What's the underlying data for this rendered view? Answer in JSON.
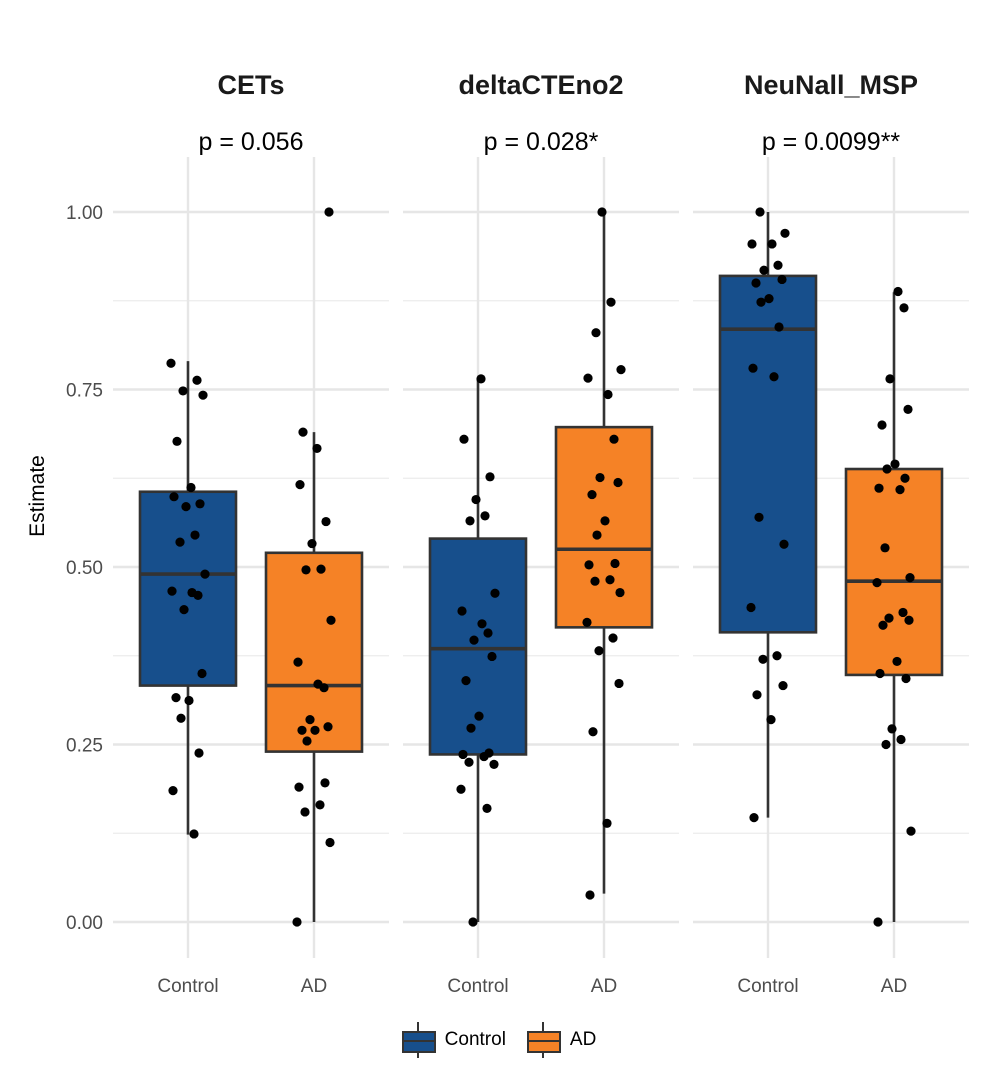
{
  "chart_data": {
    "type": "boxplot",
    "ylabel": "Estimate",
    "ylim": [
      -0.05,
      1.05
    ],
    "yticks": [
      0.0,
      0.25,
      0.5,
      0.75,
      1.0
    ],
    "ytick_labels": [
      "0.00",
      "0.25",
      "0.50",
      "0.75",
      "1.00"
    ],
    "grid": true,
    "categories": [
      "Control",
      "AD"
    ],
    "legend": {
      "position": "bottom",
      "entries": [
        {
          "label": "Control",
          "color": "#174F8C"
        },
        {
          "label": "AD",
          "color": "#F58226"
        }
      ]
    },
    "panels": [
      {
        "title": "CETs",
        "pvalue": "p = 0.056",
        "groups": [
          {
            "name": "Control",
            "box": {
              "min": 0.123,
              "q1": 0.333,
              "median": 0.49,
              "q3": 0.606,
              "max": 0.79
            },
            "points": [
              0.787,
              0.763,
              0.748,
              0.742,
              0.677,
              0.612,
              0.599,
              0.589,
              0.585,
              0.545,
              0.535,
              0.49,
              0.466,
              0.464,
              0.46,
              0.44,
              0.35,
              0.316,
              0.312,
              0.287,
              0.238,
              0.185,
              0.124
            ]
          },
          {
            "name": "AD",
            "box": {
              "min": 0.0,
              "q1": 0.24,
              "median": 0.333,
              "q3": 0.52,
              "max": 0.69
            },
            "points": [
              1.0,
              0.69,
              0.667,
              0.616,
              0.564,
              0.533,
              0.497,
              0.496,
              0.425,
              0.366,
              0.335,
              0.33,
              0.285,
              0.275,
              0.27,
              0.27,
              0.255,
              0.196,
              0.19,
              0.165,
              0.155,
              0.112,
              0.0
            ]
          }
        ]
      },
      {
        "title": "deltaCTEno2",
        "pvalue": "p = 0.028*",
        "groups": [
          {
            "name": "Control",
            "box": {
              "min": 0.0,
              "q1": 0.236,
              "median": 0.385,
              "q3": 0.54,
              "max": 0.765
            },
            "points": [
              0.765,
              0.68,
              0.627,
              0.595,
              0.572,
              0.565,
              0.463,
              0.438,
              0.42,
              0.407,
              0.397,
              0.374,
              0.34,
              0.29,
              0.273,
              0.238,
              0.236,
              0.233,
              0.225,
              0.222,
              0.187,
              0.16,
              0.0
            ]
          },
          {
            "name": "AD",
            "box": {
              "min": 0.04,
              "q1": 0.415,
              "median": 0.525,
              "q3": 0.697,
              "max": 1.0
            },
            "points": [
              1.0,
              0.873,
              0.83,
              0.778,
              0.766,
              0.743,
              0.68,
              0.626,
              0.619,
              0.602,
              0.565,
              0.545,
              0.505,
              0.503,
              0.482,
              0.48,
              0.464,
              0.422,
              0.4,
              0.382,
              0.336,
              0.268,
              0.139,
              0.038
            ]
          }
        ]
      },
      {
        "title": "NeuNall_MSP",
        "pvalue": "p = 0.0099**",
        "groups": [
          {
            "name": "Control",
            "box": {
              "min": 0.147,
              "q1": 0.408,
              "median": 0.835,
              "q3": 0.91,
              "max": 1.0
            },
            "points": [
              1.0,
              0.97,
              0.955,
              0.955,
              0.925,
              0.918,
              0.905,
              0.9,
              0.878,
              0.873,
              0.838,
              0.78,
              0.768,
              0.57,
              0.532,
              0.443,
              0.375,
              0.37,
              0.333,
              0.32,
              0.285,
              0.147
            ]
          },
          {
            "name": "AD",
            "box": {
              "min": 0.0,
              "q1": 0.348,
              "median": 0.48,
              "q3": 0.638,
              "max": 0.887
            },
            "points": [
              0.888,
              0.865,
              0.765,
              0.722,
              0.7,
              0.645,
              0.638,
              0.625,
              0.611,
              0.609,
              0.527,
              0.485,
              0.478,
              0.436,
              0.428,
              0.425,
              0.418,
              0.367,
              0.35,
              0.343,
              0.272,
              0.257,
              0.25,
              0.128,
              0.0
            ]
          }
        ]
      }
    ]
  }
}
